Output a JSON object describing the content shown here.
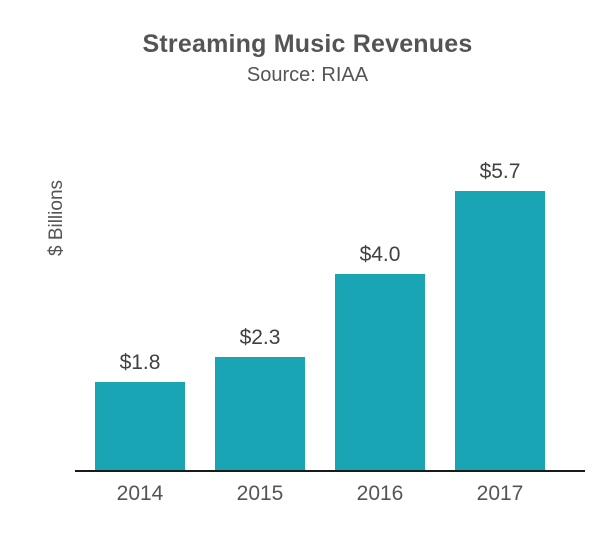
{
  "chart_data": {
    "type": "bar",
    "title": "Streaming Music Revenues",
    "subtitle": "Source: RIAA",
    "ylabel": "$ Billions",
    "xlabel": "",
    "categories": [
      "2014",
      "2015",
      "2016",
      "2017"
    ],
    "values": [
      1.8,
      2.3,
      4.0,
      5.7
    ],
    "value_labels": [
      "$1.8",
      "$2.3",
      "$4.0",
      "$5.7"
    ],
    "ylim": [
      0,
      6
    ],
    "grid": false,
    "legend": false,
    "colors": {
      "bar": "#1AA5B5",
      "axis": "#1a1a1a",
      "title_text": "#545457",
      "label_text": "#414042"
    }
  }
}
